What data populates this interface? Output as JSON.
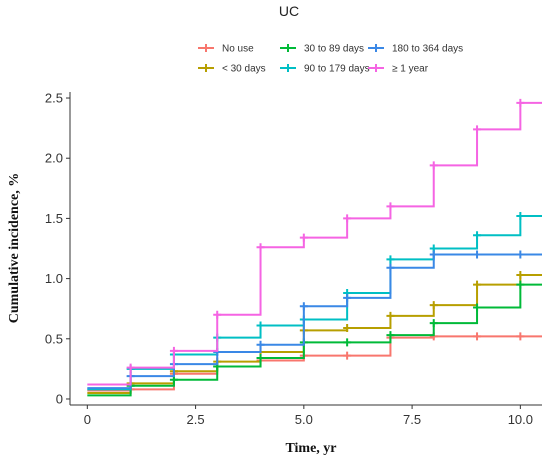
{
  "chart_data": {
    "type": "line",
    "title": "UC",
    "xlabel": "Time, yr",
    "ylabel": "Cumulative incidence, %",
    "xlim": [
      -0.4,
      10.5
    ],
    "ylim": [
      -0.05,
      2.55
    ],
    "xticks": [
      0,
      2.5,
      5,
      7.5,
      10
    ],
    "xtick_labels": [
      "0",
      "2.5",
      "5.0",
      "7.5",
      "10.0"
    ],
    "yticks": [
      0,
      0.5,
      1,
      1.5,
      2,
      2.5
    ],
    "ytick_labels": [
      "0",
      "0.5",
      "1.0",
      "1.5",
      "2.0",
      "2.5"
    ],
    "grid": false,
    "legend_position": "top",
    "step": true,
    "series": [
      {
        "name": "No use",
        "color": "#f8766d",
        "x": [
          0,
          1,
          2,
          3,
          4,
          5,
          6,
          7,
          8,
          9,
          10,
          10.5
        ],
        "y": [
          0.07,
          0.08,
          0.21,
          0.27,
          0.32,
          0.36,
          0.36,
          0.51,
          0.52,
          0.52,
          0.52,
          0.52
        ]
      },
      {
        "name": "< 30 days",
        "color": "#b79f00",
        "x": [
          0,
          1,
          2,
          3,
          4,
          5,
          6,
          7,
          8,
          9,
          10,
          10.5
        ],
        "y": [
          0.05,
          0.13,
          0.23,
          0.31,
          0.39,
          0.57,
          0.59,
          0.69,
          0.78,
          0.95,
          1.03,
          1.03
        ]
      },
      {
        "name": "30 to 89 days",
        "color": "#00ba38",
        "x": [
          0,
          1,
          2,
          3,
          4,
          5,
          6,
          7,
          8,
          9,
          10,
          10.5
        ],
        "y": [
          0.03,
          0.11,
          0.16,
          0.27,
          0.34,
          0.47,
          0.47,
          0.53,
          0.63,
          0.76,
          0.95,
          0.95
        ]
      },
      {
        "name": "90 to 179 days",
        "color": "#00bfc4",
        "x": [
          0,
          1,
          2,
          3,
          4,
          5,
          6,
          7,
          8,
          9,
          10,
          10.5
        ],
        "y": [
          0.08,
          0.25,
          0.37,
          0.51,
          0.61,
          0.66,
          0.88,
          1.16,
          1.25,
          1.36,
          1.52,
          1.52
        ]
      },
      {
        "name": "180 to 364 days",
        "color": "#3a88e6",
        "x": [
          0,
          1,
          2,
          3,
          4,
          5,
          6,
          7,
          8,
          9,
          10,
          10.5
        ],
        "y": [
          0.09,
          0.19,
          0.29,
          0.39,
          0.45,
          0.77,
          0.84,
          1.09,
          1.2,
          1.2,
          1.2,
          1.2
        ]
      },
      {
        "name": "≥ 1 year",
        "color": "#f564e3",
        "x": [
          0,
          1,
          2,
          3,
          4,
          5,
          6,
          7,
          8,
          9,
          10,
          10.5
        ],
        "y": [
          0.12,
          0.26,
          0.4,
          0.7,
          1.26,
          1.34,
          1.5,
          1.6,
          1.94,
          2.24,
          2.46,
          2.46
        ]
      }
    ]
  }
}
